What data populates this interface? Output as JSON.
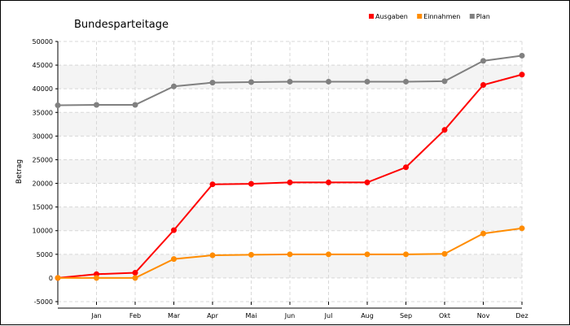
{
  "chart_data": {
    "type": "line",
    "title": "Bundesparteitage",
    "ylabel": "Betrag",
    "xlabel": "",
    "categories": [
      "",
      "Jan",
      "Feb",
      "Mar",
      "Apr",
      "Mai",
      "Jun",
      "Jul",
      "Aug",
      "Sep",
      "Okt",
      "Nov",
      "Dez"
    ],
    "ylim": [
      -5000,
      50000
    ],
    "yticks": [
      -5000,
      0,
      5000,
      10000,
      15000,
      20000,
      25000,
      30000,
      35000,
      40000,
      45000,
      50000
    ],
    "grid": true,
    "legend_position": "top-right",
    "series": [
      {
        "name": "Ausgaben",
        "color": "#ff0000",
        "values": [
          0,
          800,
          1100,
          10100,
          19800,
          19900,
          20200,
          20200,
          20200,
          23400,
          31300,
          40800,
          43000
        ]
      },
      {
        "name": "Einnahmen",
        "color": "#ff8c00",
        "values": [
          0,
          0,
          0,
          4000,
          4800,
          4900,
          5000,
          5000,
          5000,
          5000,
          5100,
          9400,
          10500
        ]
      },
      {
        "name": "Plan",
        "color": "#808080",
        "values": [
          36500,
          36600,
          36600,
          40500,
          41300,
          41400,
          41500,
          41500,
          41500,
          41500,
          41600,
          45900,
          47000
        ]
      }
    ]
  }
}
